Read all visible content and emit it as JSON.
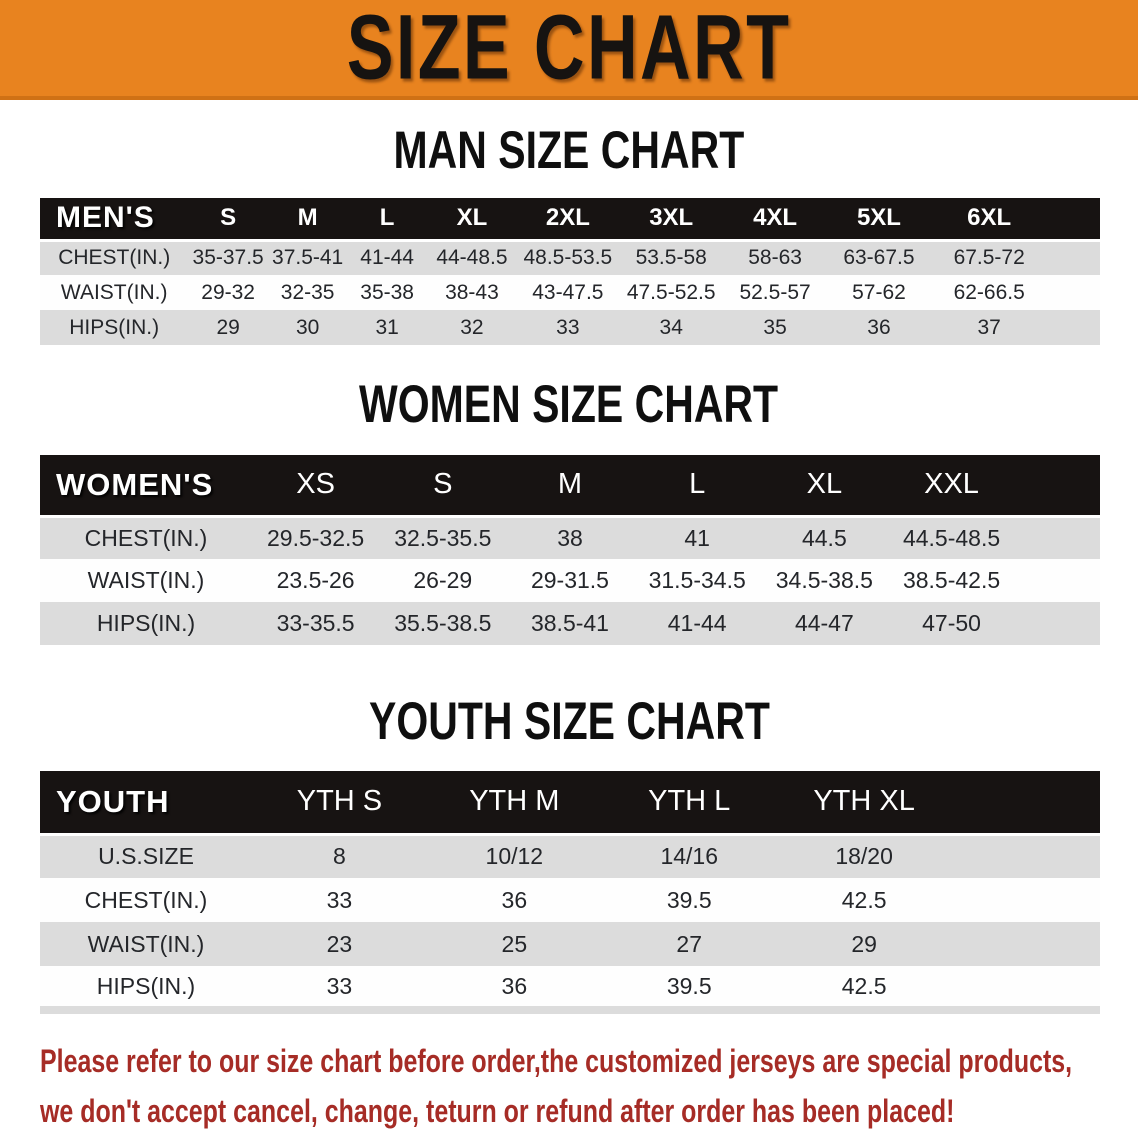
{
  "banner": {
    "title": "SIZE CHART"
  },
  "sections": {
    "men": {
      "heading": "MAN SIZE CHART",
      "table": {
        "label": "MEN'S",
        "sizes": [
          "S",
          "M",
          "L",
          "XL",
          "2XL",
          "3XL",
          "4XL",
          "5XL",
          "6XL"
        ],
        "rows": [
          {
            "label": "CHEST(IN.)",
            "values": [
              "35-37.5",
              "37.5-41",
              "41-44",
              "44-48.5",
              "48.5-53.5",
              "53.5-58",
              "58-63",
              "63-67.5",
              "67.5-72"
            ]
          },
          {
            "label": "WAIST(IN.)",
            "values": [
              "29-32",
              "32-35",
              "35-38",
              "38-43",
              "43-47.5",
              "47.5-52.5",
              "52.5-57",
              "57-62",
              "62-66.5"
            ]
          },
          {
            "label": "HIPS(IN.)",
            "values": [
              "29",
              "30",
              "31",
              "32",
              "33",
              "34",
              "35",
              "36",
              "37"
            ]
          }
        ]
      }
    },
    "women": {
      "heading": "WOMEN SIZE CHART",
      "table": {
        "label": "WOMEN'S",
        "sizes": [
          "XS",
          "S",
          "M",
          "L",
          "XL",
          "XXL"
        ],
        "rows": [
          {
            "label": "CHEST(IN.)",
            "values": [
              "29.5-32.5",
              "32.5-35.5",
              "38",
              "41",
              "44.5",
              "44.5-48.5"
            ]
          },
          {
            "label": "WAIST(IN.)",
            "values": [
              "23.5-26",
              "26-29",
              "29-31.5",
              "31.5-34.5",
              "34.5-38.5",
              "38.5-42.5"
            ]
          },
          {
            "label": "HIPS(IN.)",
            "values": [
              "33-35.5",
              "35.5-38.5",
              "38.5-41",
              "41-44",
              "44-47",
              "47-50"
            ]
          }
        ]
      }
    },
    "youth": {
      "heading": "YOUTH SIZE CHART",
      "table": {
        "label": "YOUTH",
        "sizes": [
          "YTH S",
          "YTH M",
          "YTH L",
          "YTH XL"
        ],
        "rows": [
          {
            "label": "U.S.SIZE",
            "values": [
              "8",
              "10/12",
              "14/16",
              "18/20"
            ]
          },
          {
            "label": "CHEST(IN.)",
            "values": [
              "33",
              "36",
              "39.5",
              "42.5"
            ]
          },
          {
            "label": "WAIST(IN.)",
            "values": [
              "23",
              "25",
              "27",
              "29"
            ]
          },
          {
            "label": "HIPS(IN.)",
            "values": [
              "33",
              "36",
              "39.5",
              "42.5"
            ]
          }
        ]
      }
    }
  },
  "footnote": {
    "line1": "Please refer to our size chart before order,the customized jerseys are special products,",
    "line2": "we don't accept cancel, change, teturn or refund after order has been placed!",
    "color": "#A62C26"
  },
  "colors": {
    "banner_bg": "#E8831F",
    "table_header_bg": "#171312",
    "row_stripe": "#DCDCDC"
  }
}
